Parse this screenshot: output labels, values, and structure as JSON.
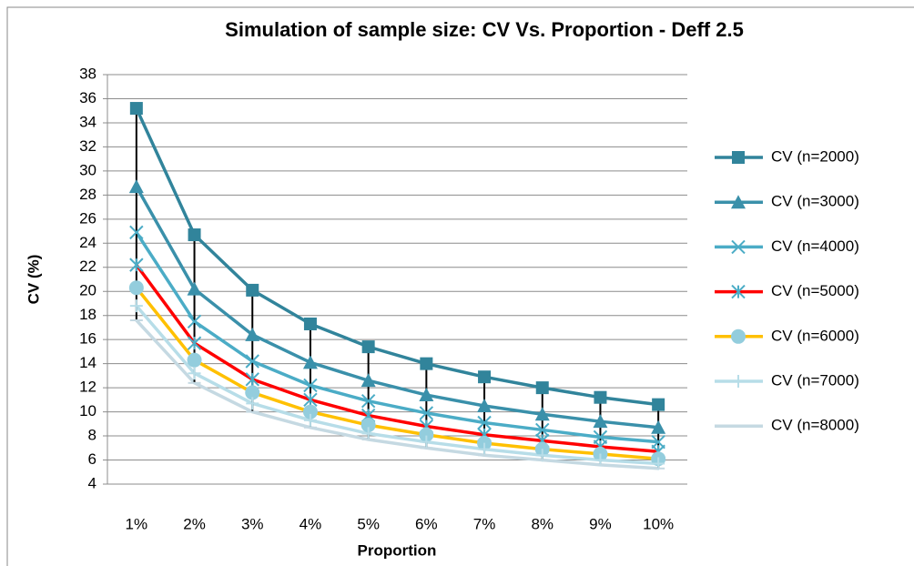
{
  "chart_data": {
    "type": "line",
    "title": "Simulation of sample size:  CV Vs. Proportion - Deff 2.5",
    "x_label": "Proportion",
    "y_label": "CV (%)",
    "categories": [
      "1%",
      "2%",
      "3%",
      "4%",
      "5%",
      "6%",
      "7%",
      "8%",
      "9%",
      "10%"
    ],
    "ylim": [
      4,
      38
    ],
    "yticks": [
      4,
      6,
      8,
      10,
      12,
      14,
      16,
      18,
      20,
      22,
      24,
      26,
      28,
      30,
      32,
      34,
      36,
      38
    ],
    "grid": true,
    "legend": "right",
    "high_low_lines": true,
    "series": [
      {
        "name": "CV (n=2000)",
        "color": "#31849b",
        "marker": "square",
        "marker_color": "#31849b",
        "values": [
          35.2,
          24.7,
          20.1,
          17.3,
          15.4,
          14.0,
          12.9,
          12.0,
          11.2,
          10.6
        ]
      },
      {
        "name": "CV (n=3000)",
        "color": "#3a90aa",
        "marker": "triangle",
        "marker_color": "#3a90aa",
        "values": [
          28.7,
          20.2,
          16.4,
          14.1,
          12.6,
          11.4,
          10.5,
          9.8,
          9.2,
          8.7
        ]
      },
      {
        "name": "CV (n=4000)",
        "color": "#4bacc6",
        "marker": "x",
        "marker_color": "#4bacc6",
        "values": [
          24.9,
          17.5,
          14.2,
          12.2,
          10.9,
          9.9,
          9.1,
          8.5,
          7.9,
          7.5
        ]
      },
      {
        "name": "CV (n=5000)",
        "color": "#ff0000",
        "marker": "star",
        "marker_color": "#4bacc6",
        "values": [
          22.2,
          15.7,
          12.7,
          11.0,
          9.7,
          8.8,
          8.1,
          7.6,
          7.1,
          6.7
        ]
      },
      {
        "name": "CV (n=6000)",
        "color": "#ffc000",
        "marker": "circle",
        "marker_color": "#93cddd",
        "values": [
          20.3,
          14.3,
          11.6,
          10.0,
          8.9,
          8.1,
          7.4,
          6.9,
          6.5,
          6.1
        ]
      },
      {
        "name": "CV (n=7000)",
        "color": "#b7dde8",
        "marker": "plus",
        "marker_color": "#b7dde8",
        "values": [
          18.8,
          13.2,
          10.7,
          9.3,
          8.2,
          7.5,
          6.9,
          6.4,
          6.0,
          5.7
        ]
      },
      {
        "name": "CV (n=8000)",
        "color": "#c5d9e2",
        "marker": "dash",
        "marker_color": "#c5d9e2",
        "values": [
          17.6,
          12.4,
          10.0,
          8.7,
          7.7,
          7.0,
          6.4,
          6.0,
          5.6,
          5.3
        ]
      }
    ]
  }
}
